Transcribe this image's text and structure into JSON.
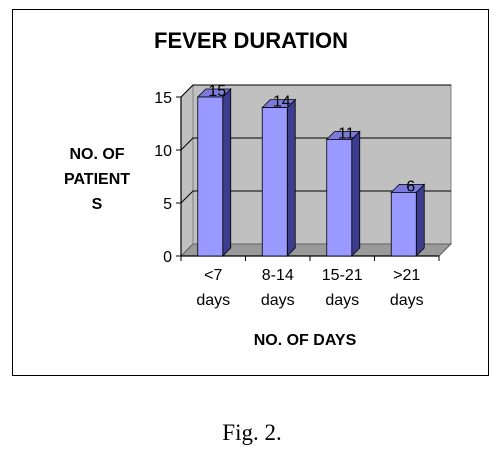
{
  "chart_data": {
    "type": "bar",
    "title": "FEVER DURATION",
    "ylabel_lines": [
      "NO. OF",
      "PATIENT",
      "S"
    ],
    "xlabel": "NO. OF DAYS",
    "categories": [
      [
        "<7",
        "days"
      ],
      [
        "8-14",
        "days"
      ],
      [
        "15-21",
        "days"
      ],
      [
        ">21",
        "days"
      ]
    ],
    "values": [
      15,
      14,
      11,
      6
    ],
    "yticks": [
      0,
      5,
      10,
      15
    ],
    "ylim": [
      0,
      15
    ],
    "grid": true,
    "colors": {
      "bar_front": "#9999ff",
      "bar_side": "#3d3d8f",
      "bar_top": "#7a7adb",
      "wall": "#c0c0c0",
      "floor": "#9a9a9a"
    }
  },
  "caption": "Fig. 2."
}
